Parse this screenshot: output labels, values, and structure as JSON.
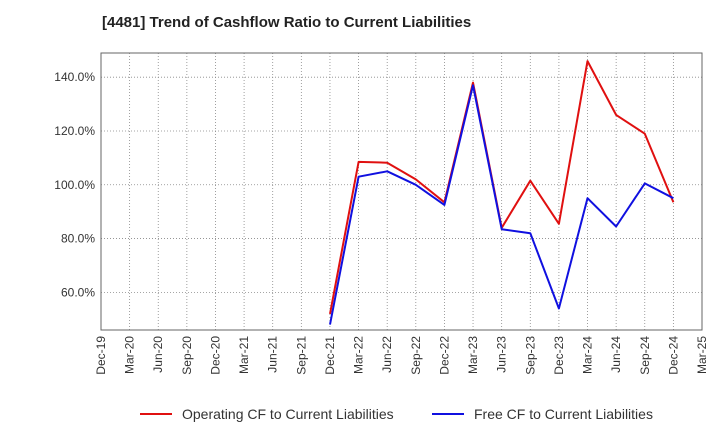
{
  "chart_data": {
    "type": "line",
    "title": "[4481]  Trend of Cashflow Ratio to Current Liabilities",
    "xlabel": "",
    "ylabel": "",
    "x_ticks": [
      "Dec-19",
      "Mar-20",
      "Jun-20",
      "Sep-20",
      "Dec-20",
      "Mar-21",
      "Jun-21",
      "Sep-21",
      "Dec-21",
      "Mar-22",
      "Jun-22",
      "Sep-22",
      "Dec-22",
      "Mar-23",
      "Jun-23",
      "Sep-23",
      "Dec-23",
      "Mar-24",
      "Jun-24",
      "Sep-24",
      "Dec-24",
      "Mar-25"
    ],
    "y_ticks": [
      "60.0%",
      "80.0%",
      "100.0%",
      "120.0%",
      "140.0%"
    ],
    "y_tick_values": [
      60,
      80,
      100,
      120,
      140
    ],
    "ylim": [
      46,
      149
    ],
    "grid": true,
    "legend_position": "bottom",
    "x": [
      "Dec-21",
      "Mar-22",
      "Jun-22",
      "Sep-22",
      "Dec-22",
      "Mar-23",
      "Jun-23",
      "Sep-23",
      "Dec-23",
      "Mar-24",
      "Jun-24",
      "Sep-24",
      "Dec-24"
    ],
    "series": [
      {
        "name": "Operating CF to Current Liabilities",
        "color": "#e01010",
        "values": [
          52.0,
          108.5,
          108.2,
          102.0,
          93.5,
          138.0,
          84.0,
          101.5,
          85.5,
          146.0,
          126.0,
          119.0,
          93.5
        ]
      },
      {
        "name": "Free CF to Current Liabilities",
        "color": "#1010e0",
        "values": [
          48.0,
          103.0,
          105.0,
          100.0,
          92.5,
          137.0,
          83.5,
          82.0,
          54.0,
          95.0,
          84.5,
          100.5,
          95.0
        ]
      }
    ]
  }
}
